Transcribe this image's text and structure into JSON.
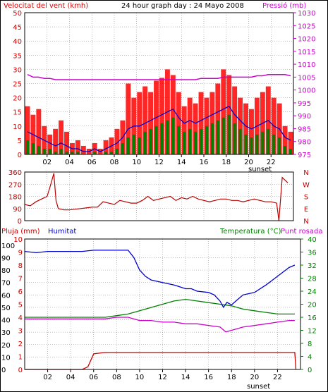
{
  "colors": {
    "wind": "#dd0000",
    "gust_fill": "#ff0000",
    "wind_avg": "#0000cc",
    "wind_green": "#008000",
    "pressure": "#cc00cc",
    "direction": "#bb0000",
    "humidity": "#0000cc",
    "temperature": "#008000",
    "dewpoint": "#cc00cc",
    "rain": "#cc0000",
    "grid": "#808080"
  },
  "chart_data": [
    {
      "type": "bar",
      "title": "24 hour graph day : 24 Mayo 2008",
      "left_label": "Velocitat del vent (kmh)",
      "right_label": "Pressió (mb)",
      "x_ticks": [
        "02",
        "04",
        "06",
        "08",
        "10",
        "12",
        "14",
        "16",
        "18",
        "20",
        "22"
      ],
      "x_marker": "sunset",
      "y_left_ticks": [
        "0",
        "5",
        "10",
        "15",
        "20",
        "25",
        "30",
        "35",
        "40",
        "45",
        "50"
      ],
      "y_right_ticks": [
        "975",
        "980",
        "985",
        "990",
        "995",
        "1000",
        "1005",
        "1010",
        "1015",
        "1020",
        "1025",
        "1030"
      ],
      "ylim_left": [
        0,
        50
      ],
      "ylim_right": [
        975,
        1030
      ],
      "xlim": [
        0,
        24
      ],
      "series": [
        {
          "key": "gust",
          "values": [
            17,
            14,
            16,
            10,
            7,
            9,
            12,
            8,
            4,
            5,
            3,
            2,
            4,
            2,
            5,
            6,
            9,
            12,
            25,
            20,
            22,
            24,
            22,
            26,
            27,
            30,
            28,
            22,
            17,
            20,
            18,
            22,
            20,
            22,
            25,
            30,
            28,
            24,
            20,
            18,
            16,
            20,
            22,
            24,
            20,
            18,
            10,
            8
          ]
        },
        {
          "key": "avg",
          "values": [
            8,
            7,
            6,
            5,
            4,
            3,
            4,
            3,
            2,
            2,
            1,
            1,
            2,
            1,
            2,
            3,
            4,
            6,
            9,
            10,
            10,
            11,
            12,
            13,
            14,
            15,
            16,
            13,
            11,
            12,
            11,
            12,
            13,
            14,
            15,
            16,
            17,
            14,
            12,
            10,
            9,
            10,
            11,
            12,
            10,
            9,
            6,
            5
          ]
        },
        {
          "key": "green",
          "values": [
            5,
            4,
            3,
            2,
            2,
            1,
            2,
            1,
            1,
            1,
            0,
            0,
            1,
            0,
            1,
            1,
            2,
            4,
            6,
            7,
            6,
            8,
            9,
            10,
            11,
            12,
            13,
            10,
            8,
            9,
            8,
            9,
            10,
            11,
            12,
            13,
            14,
            11,
            9,
            7,
            6,
            7,
            8,
            9,
            7,
            6,
            3,
            2
          ]
        },
        {
          "key": "pressure",
          "values": [
            1006,
            1005,
            1005,
            1004.5,
            1004.5,
            1004,
            1004,
            1004,
            1004,
            1004,
            1004,
            1004,
            1004,
            1004,
            1004,
            1004,
            1004,
            1004,
            1004,
            1004,
            1004,
            1004,
            1004,
            1004,
            1004,
            1004,
            1004,
            1004,
            1004,
            1004,
            1004,
            1004.5,
            1004.5,
            1004.5,
            1004.5,
            1005,
            1005,
            1005,
            1005,
            1005,
            1005,
            1005.5,
            1005.5,
            1006,
            1006,
            1006,
            1006,
            1005.5
          ]
        }
      ]
    },
    {
      "type": "line",
      "y_left_ticks": [
        "0",
        "90",
        "180",
        "270",
        "360"
      ],
      "y_right_ticks": [
        "N",
        "E",
        "S",
        "W",
        "N"
      ],
      "ylim": [
        0,
        360
      ],
      "xlim": [
        0,
        24
      ],
      "series": [
        {
          "key": "direction",
          "x": [
            0,
            0.5,
            1,
            1.5,
            2,
            2.3,
            2.6,
            2.8,
            3,
            3.5,
            4,
            5,
            6,
            6.5,
            7,
            7.5,
            8,
            8.5,
            9,
            9.5,
            10,
            10.5,
            11,
            11.5,
            12,
            12.5,
            13,
            13.5,
            14,
            14.5,
            15,
            15.5,
            16,
            16.5,
            17,
            17.5,
            18,
            18.5,
            19,
            19.5,
            20,
            20.5,
            21,
            21.5,
            22,
            22.5,
            22.7,
            23,
            23.5
          ],
          "y": [
            120,
            110,
            140,
            160,
            180,
            260,
            350,
            150,
            90,
            80,
            80,
            90,
            100,
            100,
            140,
            130,
            120,
            150,
            140,
            130,
            130,
            150,
            180,
            150,
            160,
            170,
            180,
            150,
            170,
            160,
            180,
            160,
            150,
            140,
            150,
            160,
            160,
            150,
            150,
            140,
            150,
            160,
            150,
            140,
            140,
            130,
            0,
            320,
            280
          ]
        }
      ]
    },
    {
      "type": "line",
      "left_labels": [
        "Pluja (mm)",
        "Humitat"
      ],
      "right_labels": [
        "Temperatura (°C)",
        "Punt rosada"
      ],
      "x_ticks": [
        "02",
        "04",
        "06",
        "08",
        "10",
        "12",
        "14",
        "16",
        "18",
        "20",
        "22"
      ],
      "x_marker": "sunset",
      "y_rain_ticks": [
        "0",
        "1",
        "2",
        "3",
        "4",
        "5",
        "6",
        "7",
        "8",
        "9",
        "10"
      ],
      "y_hum_ticks": [
        "0",
        "10",
        "20",
        "30",
        "40",
        "50",
        "60",
        "70",
        "80",
        "90",
        "100"
      ],
      "y_temp_ticks": [
        "0",
        "4",
        "8",
        "12",
        "16",
        "20",
        "24",
        "28",
        "32",
        "36",
        "40"
      ],
      "ylim_hum": [
        0,
        105
      ],
      "ylim_temp": [
        0,
        40
      ],
      "ylim_rain": [
        0,
        10
      ],
      "xlim": [
        0,
        24
      ],
      "series": [
        {
          "key": "humidity",
          "x": [
            0,
            1,
            2,
            3,
            4,
            5,
            6,
            7,
            8,
            9,
            9.5,
            10,
            10.5,
            11,
            12,
            13,
            14,
            14.5,
            15,
            16,
            16.5,
            17,
            17.3,
            17.6,
            18,
            18.5,
            19,
            20,
            21,
            22,
            23,
            23.5
          ],
          "y": [
            95,
            94,
            95,
            95,
            95,
            95,
            96,
            96,
            96,
            96,
            90,
            80,
            75,
            72,
            70,
            68,
            65,
            65,
            63,
            62,
            60,
            55,
            50,
            54,
            52,
            56,
            60,
            62,
            68,
            75,
            82,
            84
          ]
        },
        {
          "key": "temperature",
          "x": [
            0,
            1,
            2,
            3,
            4,
            5,
            6,
            7,
            8,
            9,
            10,
            11,
            12,
            13,
            14,
            15,
            16,
            17,
            18,
            19,
            20,
            21,
            22,
            23,
            23.5
          ],
          "y": [
            16,
            16,
            16,
            16,
            16,
            16,
            16,
            16,
            16.5,
            17,
            18,
            19,
            20,
            21,
            21.5,
            21,
            20.5,
            20,
            19.5,
            18.5,
            18,
            17.5,
            17,
            17,
            17
          ]
        },
        {
          "key": "dewpoint",
          "x": [
            0,
            1,
            2,
            3,
            4,
            5,
            6,
            7,
            8,
            9,
            10,
            11,
            12,
            13,
            14,
            15,
            16,
            17,
            17.5,
            18,
            19,
            20,
            21,
            22,
            23,
            23.5
          ],
          "y": [
            15.5,
            15.5,
            15.5,
            15.5,
            15.5,
            15.5,
            15.5,
            15.5,
            16,
            16,
            15,
            15,
            14.5,
            14.5,
            14,
            14,
            13.5,
            13,
            11.5,
            12,
            13,
            13.5,
            14,
            14.5,
            15,
            15
          ]
        },
        {
          "key": "rain",
          "x": [
            0,
            1,
            2,
            3,
            4,
            5,
            5.5,
            6,
            7,
            8,
            9,
            10,
            11,
            12,
            13,
            14,
            15,
            16,
            17,
            18,
            19,
            20,
            21,
            22,
            23,
            23.5,
            23.6
          ],
          "y": [
            0,
            0,
            0,
            0,
            0,
            0,
            0.2,
            1.2,
            1.3,
            1.3,
            1.3,
            1.3,
            1.3,
            1.3,
            1.3,
            1.3,
            1.3,
            1.3,
            1.3,
            1.3,
            1.3,
            1.3,
            1.3,
            1.3,
            1.3,
            1.3,
            0
          ]
        }
      ]
    }
  ]
}
